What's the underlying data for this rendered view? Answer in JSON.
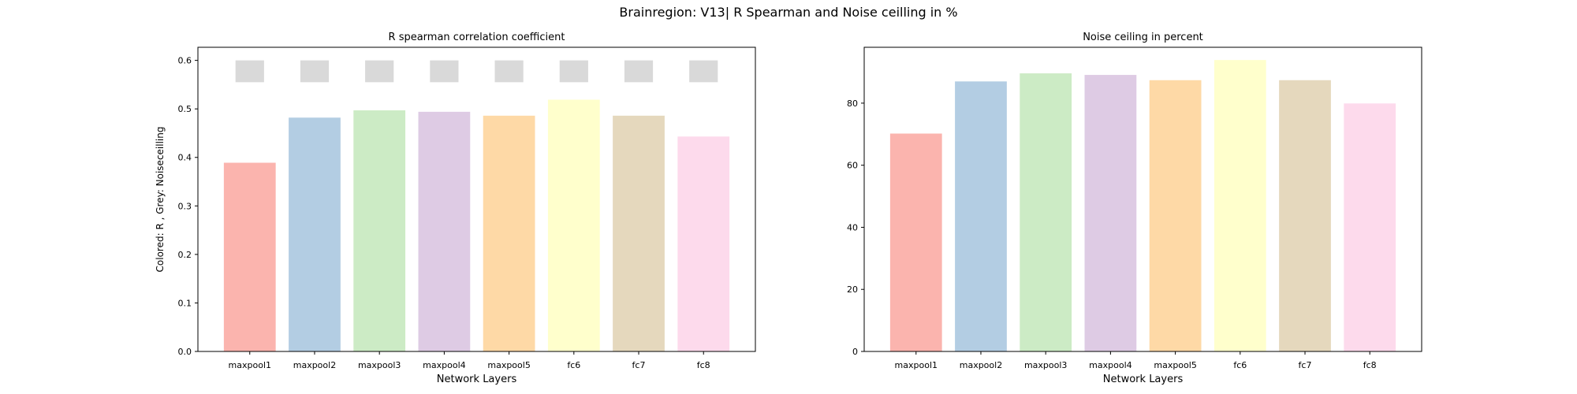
{
  "figure": {
    "suptitle": "Brainregion: V13| R Spearman and Noise ceilling in %"
  },
  "chart_data": [
    {
      "type": "bar",
      "title": "R spearman correlation coefficient",
      "xlabel": "Network Layers",
      "ylabel": "Colored: R , Grey: Noiseceilling",
      "categories": [
        "maxpool1",
        "maxpool2",
        "maxpool3",
        "maxpool4",
        "maxpool5",
        "fc6",
        "fc7",
        "fc8"
      ],
      "series": [
        {
          "values": [
            0.389,
            0.482,
            0.497,
            0.494,
            0.486,
            0.519,
            0.486,
            0.443
          ]
        },
        {
          "values": [
            0.578,
            0.578,
            0.578,
            0.578,
            0.578,
            0.578,
            0.578,
            0.578
          ]
        }
      ],
      "noise_ceiling_band": [
        0.555,
        0.6
      ],
      "ylim": [
        0,
        0.627
      ],
      "yticks": [
        0.0,
        0.1,
        0.2,
        0.3,
        0.4,
        0.5,
        0.6
      ],
      "ytick_labels": [
        "0.0",
        "0.1",
        "0.2",
        "0.3",
        "0.4",
        "0.5",
        "0.6"
      ],
      "colors": [
        "#fbb4ae",
        "#b3cde3",
        "#ccebc5",
        "#decbe4",
        "#fed9a6",
        "#ffffcc",
        "#e5d8bd",
        "#fddaec"
      ],
      "noise_color": "#d9d9d9",
      "grid": false,
      "legend": "none"
    },
    {
      "type": "bar",
      "title": "Noise ceiling in percent",
      "xlabel": "Network Layers",
      "ylabel": "",
      "categories": [
        "maxpool1",
        "maxpool2",
        "maxpool3",
        "maxpool4",
        "maxpool5",
        "fc6",
        "fc7",
        "fc8"
      ],
      "values": [
        70.2,
        87.0,
        89.6,
        89.1,
        87.4,
        93.9,
        87.4,
        79.9
      ],
      "ylim": [
        0,
        98
      ],
      "yticks": [
        0,
        20,
        40,
        60,
        80
      ],
      "ytick_labels": [
        "0",
        "20",
        "40",
        "60",
        "80"
      ],
      "colors": [
        "#fbb4ae",
        "#b3cde3",
        "#ccebc5",
        "#decbe4",
        "#fed9a6",
        "#ffffcc",
        "#e5d8bd",
        "#fddaec"
      ],
      "grid": false,
      "legend": "none"
    }
  ]
}
